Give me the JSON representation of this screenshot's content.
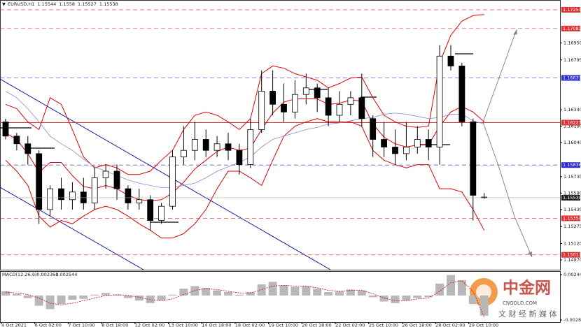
{
  "chart_data": {
    "type": "candlestick",
    "symbol": "EURUSD,H1",
    "categories": [
      "4 Oct 2021",
      null,
      null,
      "6 Oct 02:00",
      null,
      null,
      "7 Oct 10:00",
      null,
      null,
      "8 Oct 18:00",
      null,
      null,
      "12 Oct 02:00",
      null,
      null,
      "13 Oct 10:00",
      null,
      null,
      "14 Oct 18:00",
      null,
      null,
      "18 Oct 02:00",
      null,
      null,
      "19 Oct 10:00",
      null,
      null,
      "20 Oct 18:00",
      null,
      null,
      "22 Oct 02:00",
      null,
      null,
      "25 Oct 10:00",
      null,
      null,
      "26 Oct 18:00",
      null,
      null,
      "28 Oct 02:00",
      null,
      null,
      "29 Oct 10:00",
      null
    ],
    "open": [
      1.1623,
      1.161,
      1.1603,
      1.1594,
      1.1543,
      1.1562,
      1.1552,
      1.1559,
      1.1549,
      1.1572,
      1.1578,
      1.1562,
      1.1549,
      1.1552,
      1.1533,
      1.1546,
      1.1591,
      1.1597,
      1.1607,
      1.1597,
      1.1603,
      1.1597,
      1.1584,
      1.1616,
      1.1651,
      1.1639,
      1.1632,
      1.1648,
      1.1654,
      1.1645,
      1.1629,
      1.1639,
      1.1645,
      1.1626,
      1.1607,
      1.16,
      1.1594,
      1.16,
      1.1607,
      1.16,
      1.1683,
      1.1674,
      1.1623,
      1.15544
    ],
    "high": [
      1.1626,
      1.1613,
      1.161,
      1.1597,
      1.1565,
      1.1572,
      1.1568,
      1.1572,
      1.1581,
      1.1584,
      1.1584,
      1.1565,
      1.1562,
      1.1556,
      1.1549,
      1.1597,
      1.1619,
      1.1623,
      1.1616,
      1.161,
      1.1613,
      1.1603,
      1.1626,
      1.167,
      1.167,
      1.1658,
      1.1661,
      1.1667,
      1.1658,
      1.1654,
      1.1651,
      1.1651,
      1.1667,
      1.1629,
      1.1623,
      1.1616,
      1.1623,
      1.1619,
      1.1616,
      1.1693,
      1.1693,
      1.1677,
      1.1626,
      1.1558
    ],
    "low": [
      1.1607,
      1.1597,
      1.1584,
      1.153,
      1.1537,
      1.1543,
      1.1543,
      1.1543,
      1.1543,
      1.1562,
      1.1552,
      1.1543,
      1.1543,
      1.1524,
      1.153,
      1.1543,
      1.1584,
      1.1588,
      1.1591,
      1.1591,
      1.1588,
      1.1575,
      1.1581,
      1.1613,
      1.1629,
      1.1623,
      1.1626,
      1.1639,
      1.1632,
      1.1619,
      1.1623,
      1.1629,
      1.1619,
      1.1591,
      1.1591,
      1.1584,
      1.1588,
      1.1594,
      1.1588,
      1.1584,
      1.167,
      1.1619,
      1.1533,
      1.15527
    ],
    "close": [
      1.161,
      1.1603,
      1.1594,
      1.1543,
      1.1562,
      1.1552,
      1.1559,
      1.1549,
      1.1572,
      1.1578,
      1.1562,
      1.1549,
      1.1552,
      1.1533,
      1.1546,
      1.1591,
      1.1597,
      1.1607,
      1.1597,
      1.1603,
      1.1597,
      1.1584,
      1.1616,
      1.1651,
      1.1639,
      1.1632,
      1.1648,
      1.1654,
      1.1645,
      1.1629,
      1.1639,
      1.1645,
      1.1626,
      1.1607,
      1.16,
      1.1594,
      1.16,
      1.1607,
      1.16,
      1.1683,
      1.1674,
      1.1623,
      1.1556,
      1.15538
    ],
    "overlays": [
      {
        "color": "#e00000",
        "values": [
          1.1639,
          1.1635,
          1.1623,
          1.1616,
          1.1645,
          1.1639,
          1.1616,
          1.1591,
          1.1581,
          1.1584,
          1.1581,
          1.1575,
          1.1575,
          1.1578,
          1.1588,
          1.1597,
          1.1616,
          1.1629,
          1.1632,
          1.1629,
          1.1623,
          1.1616,
          1.1626,
          1.1667,
          1.1674,
          1.1672,
          1.1667,
          1.1664,
          1.1661,
          1.1654,
          1.1658,
          1.1663,
          1.1664,
          1.1645,
          1.1629,
          1.1623,
          1.1619,
          1.1618,
          1.1619,
          1.1677,
          1.1702,
          1.1715,
          1.172,
          1.1721
        ]
      },
      {
        "color": "#e00000",
        "values": [
          1.1613,
          1.1607,
          1.1594,
          1.1577,
          1.1586,
          1.1586,
          1.1574,
          1.1564,
          1.1562,
          1.1565,
          1.1562,
          1.1556,
          1.1552,
          1.1551,
          1.1552,
          1.1558,
          1.1568,
          1.158,
          1.1588,
          1.1596,
          1.16,
          1.1597,
          1.1599,
          1.1616,
          1.1631,
          1.1641,
          1.1644,
          1.1644,
          1.1644,
          1.1639,
          1.164,
          1.1643,
          1.1642,
          1.1621,
          1.1609,
          1.1603,
          1.16,
          1.1602,
          1.1602,
          1.1619,
          1.1632,
          1.1637,
          1.1632,
          1.1623
        ]
      },
      {
        "color": "#e00000",
        "values": [
          1.1588,
          1.1578,
          1.1565,
          1.1537,
          1.1527,
          1.1533,
          1.153,
          1.1537,
          1.1543,
          1.1546,
          1.1543,
          1.1537,
          1.153,
          1.1524,
          1.1517,
          1.1517,
          1.1521,
          1.153,
          1.1543,
          1.1562,
          1.1578,
          1.1578,
          1.1572,
          1.1565,
          1.1588,
          1.161,
          1.1619,
          1.1623,
          1.1626,
          1.1623,
          1.1623,
          1.1623,
          1.1619,
          1.1597,
          1.1588,
          1.1584,
          1.1581,
          1.1584,
          1.1584,
          1.1562,
          1.1562,
          1.1559,
          1.1543,
          1.1524
        ]
      },
      {
        "color": "#8a8ad6",
        "values": [
          1.1651,
          1.1645,
          1.1635,
          1.1623,
          1.161,
          1.1603,
          1.1597,
          1.1589,
          1.1582,
          1.1578,
          1.1574,
          1.157,
          1.1567,
          1.1565,
          1.1563,
          1.1563,
          1.1565,
          1.1567,
          1.1572,
          1.1578,
          1.1582,
          1.1586,
          1.1591,
          1.16,
          1.1607,
          1.161,
          1.1613,
          1.1616,
          1.1618,
          1.1621,
          1.1622,
          1.1624,
          1.1626,
          1.1627,
          1.163,
          1.1631,
          1.163,
          1.1628,
          1.1626,
          1.1627,
          1.163,
          1.163,
          1.1624,
          1.1621
        ]
      }
    ],
    "ylim": [
      1.14881,
      1.17342
    ],
    "yticks": [
      {
        "value": 1.1695,
        "label": "1.16950"
      },
      1.16795,
      {
        "value": 1.1634,
        "label": "1.16340"
      },
      {
        "value": 1.1619,
        "label": "1.16190"
      },
      {
        "value": 1.1604,
        "label": "1.16040"
      },
      {
        "value": 1.1573,
        "label": "1.15730"
      },
      {
        "value": 1.1558,
        "label": "1.15580"
      },
      {
        "value": 1.1543,
        "label": "1.15430"
      },
      1.15275,
      {
        "value": 1.1512,
        "label": "1.15120"
      },
      {
        "value": 1.1497,
        "label": "1.14970"
      }
    ],
    "levels": [
      {
        "value": 1.17253,
        "color": "#e03030",
        "dashed": true
      },
      {
        "value": 1.17082,
        "color": "#e03030",
        "dashed": true
      },
      {
        "value": 1.16631,
        "color": "#2a2ad0",
        "dashed": true
      },
      {
        "value": 1.16223,
        "color": "#e03030",
        "dashed": false
      },
      {
        "value": 1.15836,
        "color": "#2a2ad0",
        "dashed": true
      },
      {
        "value": 1.1535,
        "label": "1.15350",
        "color": "#e03030",
        "dashed": true
      },
      {
        "value": 1.15017,
        "color": "#e03030",
        "dashed": true
      }
    ],
    "macd": {
      "label": "MACD(12,26,9)",
      "histogram": [
        0.0005,
        0.0002,
        -0.0003,
        -0.0012,
        -0.0016,
        -0.001,
        -0.0005,
        -0.0004,
        0.0001,
        0.0003,
        0.0001,
        -0.0003,
        -0.0006,
        -0.0009,
        -0.0006,
        0.0001,
        0.0008,
        0.0011,
        0.0009,
        0.0006,
        0.0004,
        0.0001,
        0.0004,
        0.0013,
        0.0016,
        0.0012,
        0.001,
        0.0011,
        0.0008,
        0.0004,
        0.0005,
        0.0007,
        0.0006,
        -0.0002,
        -0.0007,
        -0.0009,
        -0.0006,
        -0.0003,
        -0.0002,
        0.0014,
        0.0024,
        0.0018,
        -0.001,
        -0.002361
      ],
      "signal": [
        0.0004,
        0.0003,
        0.0001,
        -0.0003,
        -0.0009,
        -0.0011,
        -0.0009,
        -0.0006,
        -0.0003,
        0.0,
        0.0001,
        0.0,
        -0.0002,
        -0.0005,
        -0.0006,
        -0.0004,
        0.0001,
        0.0006,
        0.0008,
        0.0007,
        0.0005,
        0.0003,
        0.0003,
        0.0007,
        0.0011,
        0.0012,
        0.0011,
        0.0011,
        0.0009,
        0.0006,
        0.0005,
        0.0006,
        0.0006,
        0.0002,
        -0.0003,
        -0.0006,
        -0.0006,
        -0.0004,
        -0.0003,
        0.0005,
        0.0015,
        0.0017,
        0.0005,
        -0.002544
      ],
      "ylim": [
        -0.0032,
        0.00286
      ],
      "yticks": [
        0.002449,
        -0.00287
      ]
    }
  },
  "watermark": {
    "brand": "中金网",
    "site": "CNGOLD.COM",
    "tagline": "文 财 经 新 媒 体"
  }
}
